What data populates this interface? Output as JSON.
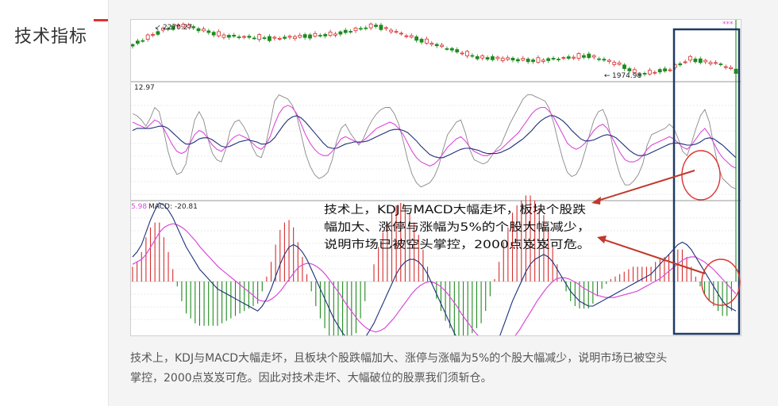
{
  "sidebar": {
    "title": "技术指标"
  },
  "colors": {
    "up": "#d62d2d",
    "down": "#1f8a1f",
    "k_line": "#888888",
    "d_line": "#1c2f7a",
    "j_line": "#d94bd9",
    "macd_line": "#1c2f7a",
    "signal_line": "#d94bd9",
    "annotation": "#c0392b",
    "highlight_box": "#203a64"
  },
  "chart_data": {
    "type": "candlestick",
    "price_panel": {
      "high_label": "2270.27",
      "low_label": "1974.98",
      "top_right_marker": "***"
    },
    "kdj_panel": {
      "left_value_label": "12.97",
      "k": [
        72,
        70,
        68,
        66,
        70,
        74,
        72,
        66,
        58,
        50,
        44,
        42,
        44,
        52,
        60,
        64,
        62,
        56,
        50,
        46,
        44,
        48,
        54,
        58,
        60,
        58,
        56,
        52,
        48,
        46,
        50,
        58,
        70,
        80,
        86,
        88,
        86,
        80,
        70,
        60,
        52,
        46,
        42,
        40,
        40,
        44,
        50,
        56,
        58,
        56,
        54,
        52,
        54,
        58,
        62,
        66,
        68,
        70,
        72,
        70,
        66,
        60,
        52,
        44,
        38,
        34,
        32,
        30,
        32,
        36,
        42,
        48,
        52,
        56,
        58,
        54,
        48,
        44,
        42,
        40,
        40,
        42,
        44,
        46,
        50,
        54,
        58,
        62,
        68,
        74,
        80,
        84,
        86,
        86,
        82,
        76,
        68,
        60,
        52,
        48,
        46,
        48,
        52,
        58,
        64,
        68,
        70,
        66,
        58,
        50,
        42,
        36,
        34,
        34,
        36,
        40,
        46,
        50,
        52,
        54,
        56,
        58,
        56,
        52,
        48,
        46,
        50,
        56,
        62,
        66,
        60,
        52,
        44,
        38,
        34,
        30,
        28
      ],
      "d": [
        64,
        66,
        66,
        66,
        66,
        67,
        68,
        68,
        66,
        62,
        58,
        54,
        51,
        51,
        53,
        56,
        57,
        57,
        55,
        52,
        49,
        48,
        49,
        51,
        53,
        54,
        55,
        54,
        53,
        51,
        51,
        53,
        57,
        63,
        69,
        74,
        77,
        78,
        76,
        72,
        67,
        62,
        57,
        52,
        48,
        47,
        47,
        49,
        51,
        52,
        53,
        53,
        53,
        54,
        56,
        58,
        60,
        62,
        64,
        65,
        65,
        64,
        62,
        58,
        54,
        49,
        45,
        41,
        39,
        38,
        38,
        40,
        42,
        44,
        46,
        47,
        47,
        46,
        45,
        43,
        42,
        42,
        42,
        43,
        45,
        47,
        50,
        53,
        56,
        60,
        64,
        69,
        73,
        76,
        78,
        78,
        76,
        73,
        69,
        64,
        60,
        56,
        54,
        54,
        55,
        57,
        59,
        60,
        59,
        57,
        53,
        49,
        45,
        42,
        40,
        40,
        41,
        43,
        45,
        47,
        49,
        51,
        52,
        52,
        51,
        50,
        50,
        51,
        53,
        56,
        57,
        56,
        53,
        50,
        46,
        42,
        38
      ],
      "j": [
        80,
        78,
        74,
        68,
        76,
        86,
        82,
        64,
        44,
        30,
        22,
        24,
        32,
        54,
        74,
        82,
        74,
        56,
        42,
        36,
        34,
        46,
        64,
        72,
        74,
        68,
        60,
        48,
        40,
        38,
        50,
        70,
        92,
        98,
        96,
        94,
        88,
        78,
        60,
        42,
        30,
        22,
        18,
        20,
        24,
        36,
        54,
        66,
        70,
        62,
        56,
        50,
        56,
        66,
        74,
        80,
        84,
        86,
        86,
        80,
        70,
        54,
        36,
        22,
        14,
        10,
        12,
        14,
        20,
        30,
        46,
        60,
        66,
        72,
        74,
        62,
        46,
        36,
        34,
        32,
        34,
        40,
        46,
        50,
        60,
        70,
        78,
        86,
        94,
        98,
        98,
        96,
        94,
        92,
        84,
        70,
        52,
        36,
        24,
        20,
        22,
        30,
        44,
        60,
        74,
        82,
        84,
        74,
        54,
        34,
        20,
        12,
        12,
        16,
        22,
        32,
        50,
        60,
        62,
        64,
        66,
        70,
        66,
        56,
        44,
        40,
        52,
        66,
        78,
        84,
        72,
        50,
        30,
        18,
        14,
        10,
        8
      ]
    },
    "macd_panel": {
      "left_value_label": "5.98",
      "title": "MACD: -20.81",
      "dif": [
        20,
        24,
        30,
        40,
        50,
        58,
        64,
        62,
        58,
        52,
        44,
        36,
        28,
        22,
        16,
        10,
        6,
        2,
        -2,
        -6,
        -8,
        -10,
        -12,
        -14,
        -16,
        -18,
        -20,
        -22,
        -24,
        -20,
        -14,
        -6,
        4,
        14,
        22,
        28,
        30,
        28,
        24,
        18,
        10,
        2,
        -6,
        -14,
        -22,
        -30,
        -36,
        -42,
        -46,
        -50,
        -52,
        -50,
        -46,
        -40,
        -34,
        -26,
        -18,
        -10,
        -2,
        6,
        12,
        16,
        18,
        18,
        16,
        12,
        6,
        -2,
        -10,
        -18,
        -26,
        -34,
        -42,
        -48,
        -54,
        -58,
        -62,
        -64,
        -66,
        -64,
        -60,
        -54,
        -46,
        -36,
        -26,
        -16,
        -8,
        0,
        8,
        14,
        18,
        20,
        22,
        20,
        16,
        10,
        4,
        -2,
        -8,
        -12,
        -16,
        -18,
        -20,
        -20,
        -18,
        -16,
        -14,
        -12,
        -10,
        -8,
        -6,
        -4,
        -2,
        0,
        2,
        4,
        6,
        10,
        14,
        18,
        22,
        26,
        30,
        32,
        30,
        26,
        20,
        14,
        8,
        2,
        -4,
        -10,
        -16,
        -20,
        -22,
        -24
      ],
      "dea": [
        14,
        16,
        18,
        22,
        28,
        34,
        40,
        44,
        46,
        47,
        46,
        44,
        41,
        37,
        33,
        28,
        24,
        20,
        16,
        12,
        9,
        6,
        3,
        0,
        -3,
        -6,
        -9,
        -12,
        -15,
        -16,
        -16,
        -14,
        -11,
        -7,
        -2,
        3,
        8,
        12,
        14,
        15,
        14,
        12,
        9,
        5,
        0,
        -5,
        -10,
        -16,
        -21,
        -26,
        -31,
        -35,
        -38,
        -40,
        -41,
        -40,
        -38,
        -34,
        -30,
        -25,
        -20,
        -15,
        -10,
        -6,
        -3,
        -1,
        0,
        -1,
        -3,
        -6,
        -10,
        -15,
        -20,
        -26,
        -31,
        -36,
        -41,
        -45,
        -49,
        -52,
        -54,
        -55,
        -54,
        -52,
        -48,
        -44,
        -39,
        -33,
        -27,
        -21,
        -15,
        -10,
        -5,
        -1,
        2,
        3,
        3,
        2,
        0,
        -2,
        -5,
        -7,
        -9,
        -11,
        -12,
        -13,
        -13,
        -13,
        -12,
        -11,
        -10,
        -9,
        -8,
        -6,
        -4,
        -2,
        0,
        2,
        5,
        8,
        11,
        14,
        17,
        19,
        20,
        20,
        18,
        16,
        13,
        10,
        6,
        2,
        -2,
        -6,
        -10
      ]
    },
    "annotation_lines": [
      "技术上，KDJ与MACD大幅走坏，板块个股跌",
      "幅加大、涨停与涨幅为5%的个股大幅减少，",
      "说明市场已被空头掌控，2000点岌岌可危。"
    ]
  },
  "caption": {
    "line1": "技术上，KDJ与MACD大幅走坏，且板块个股跌幅加大、涨停与涨幅为5%的个股大幅减少，说明市场已被空头",
    "line2": "掌控，2000点岌岌可危。因此对技术走坏、大幅破位的股票我们须斩仓。"
  }
}
